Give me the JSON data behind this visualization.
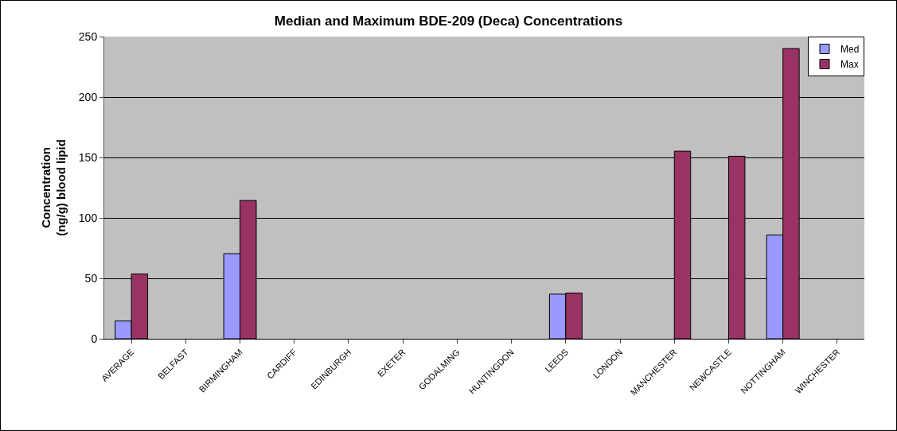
{
  "chart_data": {
    "type": "bar",
    "title": "Median and Maximum BDE-209 (Deca) Concentrations",
    "ylabel": "Concentration\n(ng/g) blood lipid",
    "categories": [
      "AVERAGE",
      "BELFAST",
      "BIRMINGHAM",
      "CARDIFF",
      "EDINBURGH",
      "EXETER",
      "GODALMING",
      "HUNTINGDON",
      "LEEDS",
      "LONDON",
      "MANCHESTER",
      "NEWCASTLE",
      "NOTTINGHAM",
      "WINCHESTER"
    ],
    "series": [
      {
        "name": "Med",
        "color": "#9999ff",
        "values": [
          14.7,
          null,
          70.4,
          null,
          null,
          null,
          null,
          null,
          36.9,
          null,
          null,
          null,
          85.8,
          null
        ]
      },
      {
        "name": "Max",
        "color": "#993366",
        "values": [
          53.6,
          null,
          114.4,
          null,
          null,
          null,
          null,
          null,
          37.8,
          null,
          155.2,
          151.0,
          240.1,
          null
        ]
      }
    ],
    "ylim": [
      0,
      250
    ],
    "yticks": [
      0,
      50,
      100,
      150,
      200,
      250
    ],
    "grid": "y",
    "legend": "top right"
  }
}
